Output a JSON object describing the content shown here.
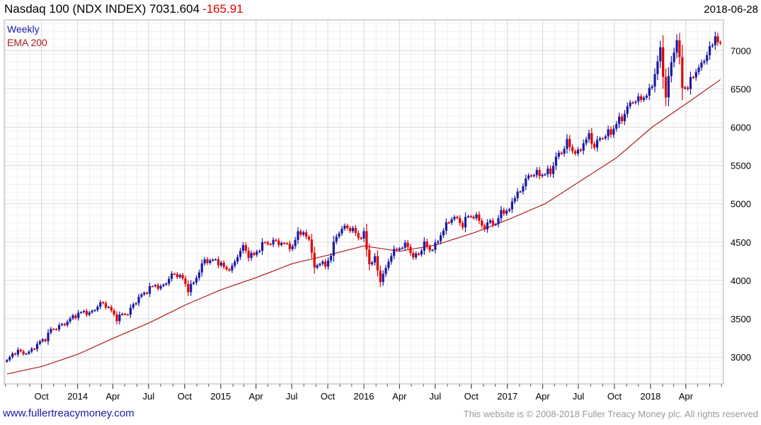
{
  "header": {
    "title": "Nasdaq 100 (NDX INDEX) 7031.604",
    "change": "-165.91",
    "date": "2018-06-28"
  },
  "legend": {
    "weekly": "Weekly",
    "ema": "EMA 200"
  },
  "footer": {
    "left": "www.fullertreacymoney.com",
    "right": "This website is © 2008-2018 Fuller Treacy Money plc. All rights reserved"
  },
  "colors": {
    "up": "#1a1aa6",
    "down": "#e00000",
    "ema": "#b01c1c",
    "grid": "#d9d9d9",
    "plot_border": "#b0b0b0"
  },
  "chart_data": {
    "type": "line",
    "title": "Nasdaq 100 (NDX INDEX) 7031.604 -165.91",
    "x_tick_labels": [
      "Oct",
      "2014",
      "Apr",
      "Jul",
      "Oct",
      "2015",
      "Apr",
      "Jul",
      "Oct",
      "2016",
      "Apr",
      "Jul",
      "Oct",
      "2017",
      "Apr",
      "Jul",
      "Oct",
      "2018",
      "Apr"
    ],
    "y_tick_labels": [
      "3000",
      "3500",
      "4000",
      "4500",
      "5000",
      "5500",
      "6000",
      "6500",
      "7000"
    ],
    "ylim": [
      2650,
      7400
    ],
    "grid": true,
    "legend_position": "top-left",
    "series": [
      {
        "name": "Weekly",
        "style": "weekly price bars (blue up, red down)",
        "values": [
          [
            "2013-07-05",
            2950
          ],
          [
            "2013-07-19",
            3040
          ],
          [
            "2013-08-02",
            3080
          ],
          [
            "2013-08-16",
            3050
          ],
          [
            "2013-08-30",
            3060
          ],
          [
            "2013-09-13",
            3130
          ],
          [
            "2013-09-27",
            3200
          ],
          [
            "2013-10-11",
            3240
          ],
          [
            "2013-10-25",
            3360
          ],
          [
            "2013-11-08",
            3380
          ],
          [
            "2013-11-22",
            3420
          ],
          [
            "2013-12-06",
            3460
          ],
          [
            "2013-12-20",
            3530
          ],
          [
            "2014-01-03",
            3560
          ],
          [
            "2014-01-17",
            3600
          ],
          [
            "2014-01-31",
            3560
          ],
          [
            "2014-02-14",
            3630
          ],
          [
            "2014-02-28",
            3700
          ],
          [
            "2014-03-14",
            3680
          ],
          [
            "2014-03-28",
            3600
          ],
          [
            "2014-04-11",
            3500
          ],
          [
            "2014-04-25",
            3560
          ],
          [
            "2014-05-09",
            3570
          ],
          [
            "2014-05-23",
            3680
          ],
          [
            "2014-06-06",
            3780
          ],
          [
            "2014-06-20",
            3830
          ],
          [
            "2014-07-04",
            3900
          ],
          [
            "2014-07-18",
            3940
          ],
          [
            "2014-08-01",
            3900
          ],
          [
            "2014-08-15",
            3980
          ],
          [
            "2014-08-29",
            4070
          ],
          [
            "2014-09-12",
            4080
          ],
          [
            "2014-09-26",
            4020
          ],
          [
            "2014-10-10",
            3880
          ],
          [
            "2014-10-24",
            3970
          ],
          [
            "2014-11-07",
            4120
          ],
          [
            "2014-11-21",
            4270
          ],
          [
            "2014-12-05",
            4250
          ],
          [
            "2014-12-19",
            4270
          ],
          [
            "2015-01-02",
            4200
          ],
          [
            "2015-01-16",
            4150
          ],
          [
            "2015-01-30",
            4160
          ],
          [
            "2015-02-13",
            4330
          ],
          [
            "2015-02-27",
            4440
          ],
          [
            "2015-03-13",
            4330
          ],
          [
            "2015-03-27",
            4330
          ],
          [
            "2015-04-10",
            4420
          ],
          [
            "2015-04-24",
            4500
          ],
          [
            "2015-05-08",
            4480
          ],
          [
            "2015-05-22",
            4520
          ],
          [
            "2015-06-05",
            4470
          ],
          [
            "2015-06-19",
            4480
          ],
          [
            "2015-07-03",
            4410
          ],
          [
            "2015-07-17",
            4650
          ],
          [
            "2015-07-31",
            4590
          ],
          [
            "2015-08-14",
            4560
          ],
          [
            "2015-08-28",
            4150
          ],
          [
            "2015-09-11",
            4250
          ],
          [
            "2015-09-25",
            4180
          ],
          [
            "2015-10-09",
            4350
          ],
          [
            "2015-10-23",
            4580
          ],
          [
            "2015-11-06",
            4680
          ],
          [
            "2015-11-20",
            4690
          ],
          [
            "2015-12-04",
            4660
          ],
          [
            "2015-12-18",
            4560
          ],
          [
            "2016-01-01",
            4600
          ],
          [
            "2016-01-15",
            4220
          ],
          [
            "2016-01-29",
            4280
          ],
          [
            "2016-02-12",
            4000
          ],
          [
            "2016-02-26",
            4150
          ],
          [
            "2016-03-11",
            4350
          ],
          [
            "2016-03-25",
            4400
          ],
          [
            "2016-04-08",
            4450
          ],
          [
            "2016-04-22",
            4450
          ],
          [
            "2016-05-06",
            4300
          ],
          [
            "2016-05-20",
            4350
          ],
          [
            "2016-06-03",
            4480
          ],
          [
            "2016-06-17",
            4400
          ],
          [
            "2016-07-01",
            4450
          ],
          [
            "2016-07-15",
            4600
          ],
          [
            "2016-07-29",
            4720
          ],
          [
            "2016-08-12",
            4820
          ],
          [
            "2016-08-26",
            4800
          ],
          [
            "2016-09-09",
            4720
          ],
          [
            "2016-09-23",
            4850
          ],
          [
            "2016-10-07",
            4830
          ],
          [
            "2016-10-21",
            4800
          ],
          [
            "2016-11-04",
            4660
          ],
          [
            "2016-11-18",
            4800
          ],
          [
            "2016-12-02",
            4700
          ],
          [
            "2016-12-16",
            4930
          ],
          [
            "2016-12-30",
            4860
          ],
          [
            "2017-01-13",
            5040
          ],
          [
            "2017-01-27",
            5120
          ],
          [
            "2017-02-10",
            5250
          ],
          [
            "2017-02-24",
            5360
          ],
          [
            "2017-03-10",
            5400
          ],
          [
            "2017-03-24",
            5380
          ],
          [
            "2017-04-07",
            5400
          ],
          [
            "2017-04-21",
            5420
          ],
          [
            "2017-05-05",
            5600
          ],
          [
            "2017-05-19",
            5680
          ],
          [
            "2017-06-02",
            5800
          ],
          [
            "2017-06-16",
            5700
          ],
          [
            "2017-06-30",
            5650
          ],
          [
            "2017-07-14",
            5800
          ],
          [
            "2017-07-28",
            5880
          ],
          [
            "2017-08-11",
            5750
          ],
          [
            "2017-08-25",
            5850
          ],
          [
            "2017-09-08",
            5900
          ],
          [
            "2017-09-22",
            5930
          ],
          [
            "2017-10-06",
            6050
          ],
          [
            "2017-10-20",
            6120
          ],
          [
            "2017-11-03",
            6250
          ],
          [
            "2017-11-17",
            6350
          ],
          [
            "2017-12-01",
            6350
          ],
          [
            "2017-12-15",
            6400
          ],
          [
            "2017-12-29",
            6450
          ],
          [
            "2018-01-12",
            6700
          ],
          [
            "2018-01-26",
            7000
          ],
          [
            "2018-02-09",
            6400
          ],
          [
            "2018-02-23",
            6850
          ],
          [
            "2018-03-09",
            7150
          ],
          [
            "2018-03-23",
            6550
          ],
          [
            "2018-04-06",
            6500
          ],
          [
            "2018-04-20",
            6700
          ],
          [
            "2018-05-04",
            6750
          ],
          [
            "2018-05-18",
            6900
          ],
          [
            "2018-06-01",
            7000
          ],
          [
            "2018-06-15",
            7200
          ],
          [
            "2018-06-28",
            7031.604
          ]
        ]
      },
      {
        "name": "EMA 200",
        "style": "line",
        "values": [
          [
            "2013-07-05",
            2780
          ],
          [
            "2013-10-04",
            2880
          ],
          [
            "2014-01-03",
            3040
          ],
          [
            "2014-04-04",
            3250
          ],
          [
            "2014-07-04",
            3450
          ],
          [
            "2014-10-03",
            3680
          ],
          [
            "2015-01-02",
            3880
          ],
          [
            "2015-04-03",
            4040
          ],
          [
            "2015-07-03",
            4220
          ],
          [
            "2015-10-02",
            4330
          ],
          [
            "2016-01-01",
            4450
          ],
          [
            "2016-04-01",
            4380
          ],
          [
            "2016-07-01",
            4460
          ],
          [
            "2016-10-07",
            4620
          ],
          [
            "2017-01-06",
            4800
          ],
          [
            "2017-04-07",
            5000
          ],
          [
            "2017-07-07",
            5300
          ],
          [
            "2017-10-06",
            5600
          ],
          [
            "2018-01-05",
            6000
          ],
          [
            "2018-04-06",
            6320
          ],
          [
            "2018-06-28",
            6620
          ]
        ]
      }
    ]
  }
}
